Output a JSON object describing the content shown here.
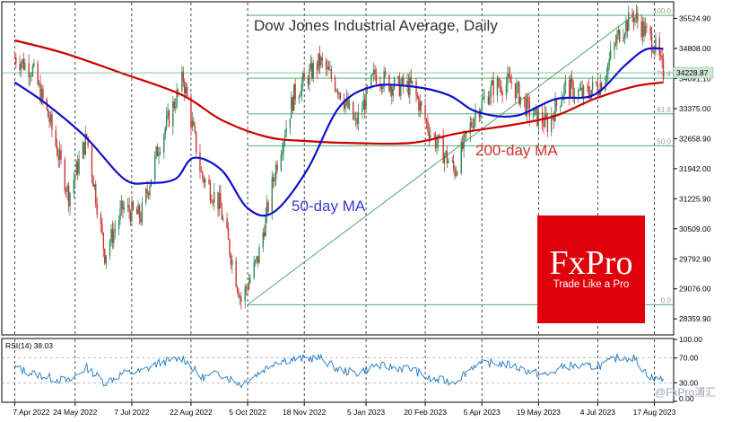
{
  "chart_data": {
    "type": "candlestick",
    "title": "Dow Jones Industrial Average, Daily",
    "price_axis": {
      "ylim": [
        28000,
        35900
      ],
      "ticks": [
        "35524.90",
        "34808.00",
        "34091.10",
        "33375.00",
        "32658.90",
        "31942.00",
        "31225.90",
        "30509.00",
        "29792.90",
        "29076.00",
        "28359.90"
      ],
      "tick_values": [
        35524.9,
        34808.0,
        34091.1,
        33375.0,
        32658.9,
        31942.0,
        31225.9,
        30509.0,
        29792.9,
        29076.0,
        28359.9
      ],
      "current_price_label": "34228.87",
      "current_price": 34228.87
    },
    "date_axis": {
      "labels": [
        "7 Apr 2022",
        "24 May 2022",
        "7 Jul 2022",
        "22 Aug 2022",
        "5 Oct 2022",
        "18 Nov 2022",
        "5 Jan 2023",
        "20 Feb 2023",
        "5 Apr 2023",
        "19 May 2023",
        "4 Jul 2023",
        "17 Aug 2023"
      ]
    },
    "price_series": [
      {
        "date": "2022-04-07",
        "close": 34600
      },
      {
        "date": "2022-04-21",
        "close": 34300
      },
      {
        "date": "2022-05-05",
        "close": 33000
      },
      {
        "date": "2022-05-19",
        "close": 31300
      },
      {
        "date": "2022-06-02",
        "close": 32700
      },
      {
        "date": "2022-06-16",
        "close": 29900
      },
      {
        "date": "2022-06-30",
        "close": 31000
      },
      {
        "date": "2022-07-14",
        "close": 30800
      },
      {
        "date": "2022-07-28",
        "close": 32500
      },
      {
        "date": "2022-08-16",
        "close": 34100
      },
      {
        "date": "2022-08-30",
        "close": 31800
      },
      {
        "date": "2022-09-13",
        "close": 31100
      },
      {
        "date": "2022-09-30",
        "close": 28800
      },
      {
        "date": "2022-10-13",
        "close": 29800
      },
      {
        "date": "2022-10-27",
        "close": 32000
      },
      {
        "date": "2022-11-10",
        "close": 33700
      },
      {
        "date": "2022-11-30",
        "close": 34500
      },
      {
        "date": "2022-12-14",
        "close": 33900
      },
      {
        "date": "2022-12-28",
        "close": 33000
      },
      {
        "date": "2023-01-12",
        "close": 34200
      },
      {
        "date": "2023-01-27",
        "close": 33900
      },
      {
        "date": "2023-02-10",
        "close": 33900
      },
      {
        "date": "2023-02-24",
        "close": 32800
      },
      {
        "date": "2023-03-15",
        "close": 31900
      },
      {
        "date": "2023-03-31",
        "close": 33300
      },
      {
        "date": "2023-04-14",
        "close": 33900
      },
      {
        "date": "2023-04-28",
        "close": 34000
      },
      {
        "date": "2023-05-12",
        "close": 33300
      },
      {
        "date": "2023-05-26",
        "close": 33000
      },
      {
        "date": "2023-06-09",
        "close": 33900
      },
      {
        "date": "2023-06-23",
        "close": 33700
      },
      {
        "date": "2023-07-07",
        "close": 34000
      },
      {
        "date": "2023-07-21",
        "close": 35200
      },
      {
        "date": "2023-08-01",
        "close": 35600
      },
      {
        "date": "2023-08-10",
        "close": 35200
      },
      {
        "date": "2023-08-17",
        "close": 34900
      },
      {
        "date": "2023-08-24",
        "close": 34228.87
      }
    ],
    "ma50": {
      "name": "50-day MA",
      "color": "#1010cc",
      "points": [
        {
          "date": "2022-04-07",
          "value": 34000
        },
        {
          "date": "2022-05-01",
          "value": 33500
        },
        {
          "date": "2022-06-01",
          "value": 32700
        },
        {
          "date": "2022-07-01",
          "value": 31700
        },
        {
          "date": "2022-07-20",
          "value": 31600
        },
        {
          "date": "2022-08-10",
          "value": 31700
        },
        {
          "date": "2022-08-24",
          "value": 32200
        },
        {
          "date": "2022-09-15",
          "value": 31900
        },
        {
          "date": "2022-10-05",
          "value": 31000
        },
        {
          "date": "2022-10-25",
          "value": 30900
        },
        {
          "date": "2022-11-20",
          "value": 31900
        },
        {
          "date": "2022-12-15",
          "value": 33400
        },
        {
          "date": "2023-01-10",
          "value": 33900
        },
        {
          "date": "2023-02-10",
          "value": 33900
        },
        {
          "date": "2023-03-10",
          "value": 33700
        },
        {
          "date": "2023-04-01",
          "value": 33300
        },
        {
          "date": "2023-05-01",
          "value": 33200
        },
        {
          "date": "2023-06-01",
          "value": 33600
        },
        {
          "date": "2023-07-01",
          "value": 33700
        },
        {
          "date": "2023-07-25",
          "value": 34400
        },
        {
          "date": "2023-08-10",
          "value": 34780
        },
        {
          "date": "2023-08-24",
          "value": 34800
        }
      ]
    },
    "ma200": {
      "name": "200-day MA",
      "color": "#cc0000",
      "points": [
        {
          "date": "2022-04-07",
          "value": 35000
        },
        {
          "date": "2022-05-15",
          "value": 34700
        },
        {
          "date": "2022-07-01",
          "value": 34200
        },
        {
          "date": "2022-08-15",
          "value": 33700
        },
        {
          "date": "2022-09-15",
          "value": 33100
        },
        {
          "date": "2022-10-20",
          "value": 32700
        },
        {
          "date": "2022-11-20",
          "value": 32600
        },
        {
          "date": "2023-01-01",
          "value": 32550
        },
        {
          "date": "2023-02-10",
          "value": 32560
        },
        {
          "date": "2023-03-20",
          "value": 32800
        },
        {
          "date": "2023-05-01",
          "value": 33000
        },
        {
          "date": "2023-06-01",
          "value": 33200
        },
        {
          "date": "2023-07-01",
          "value": 33600
        },
        {
          "date": "2023-08-01",
          "value": 33900
        },
        {
          "date": "2023-08-24",
          "value": 34000
        }
      ]
    },
    "fibonacci": {
      "levels": [
        {
          "label": "100.0",
          "value": 35600
        },
        {
          "label": "76.4",
          "value": 34100
        },
        {
          "label": "61.8",
          "value": 33250
        },
        {
          "label": "50.0",
          "value": 32490
        },
        {
          "label": "0.0",
          "value": 28700
        }
      ],
      "start_date": "2022-10-05",
      "end_date": "2023-08-24",
      "trendline": {
        "from": {
          "date": "2022-10-05",
          "value": 28700
        },
        "to": {
          "date": "2023-08-01",
          "value": 35600
        }
      }
    },
    "rsi": {
      "label": "RSI(14) 38.03",
      "ylim": [
        0,
        100
      ],
      "ticks": [
        "100.00",
        "70.00",
        "30.00",
        "0.00"
      ],
      "tick_values": [
        100,
        70,
        30,
        0
      ],
      "values": [
        {
          "date": "2022-04-07",
          "value": 55
        },
        {
          "date": "2022-04-21",
          "value": 45
        },
        {
          "date": "2022-05-05",
          "value": 38
        },
        {
          "date": "2022-05-19",
          "value": 32
        },
        {
          "date": "2022-06-02",
          "value": 55
        },
        {
          "date": "2022-06-16",
          "value": 30
        },
        {
          "date": "2022-06-30",
          "value": 45
        },
        {
          "date": "2022-07-14",
          "value": 48
        },
        {
          "date": "2022-07-28",
          "value": 62
        },
        {
          "date": "2022-08-16",
          "value": 70
        },
        {
          "date": "2022-08-30",
          "value": 38
        },
        {
          "date": "2022-09-13",
          "value": 45
        },
        {
          "date": "2022-09-30",
          "value": 28
        },
        {
          "date": "2022-10-13",
          "value": 45
        },
        {
          "date": "2022-10-27",
          "value": 65
        },
        {
          "date": "2022-11-10",
          "value": 68
        },
        {
          "date": "2022-11-30",
          "value": 70
        },
        {
          "date": "2022-12-14",
          "value": 52
        },
        {
          "date": "2022-12-28",
          "value": 45
        },
        {
          "date": "2023-01-12",
          "value": 58
        },
        {
          "date": "2023-01-27",
          "value": 55
        },
        {
          "date": "2023-02-10",
          "value": 52
        },
        {
          "date": "2023-02-24",
          "value": 35
        },
        {
          "date": "2023-03-15",
          "value": 32
        },
        {
          "date": "2023-03-31",
          "value": 60
        },
        {
          "date": "2023-04-14",
          "value": 62
        },
        {
          "date": "2023-04-28",
          "value": 58
        },
        {
          "date": "2023-05-12",
          "value": 48
        },
        {
          "date": "2023-05-26",
          "value": 42
        },
        {
          "date": "2023-06-09",
          "value": 58
        },
        {
          "date": "2023-06-23",
          "value": 55
        },
        {
          "date": "2023-07-07",
          "value": 58
        },
        {
          "date": "2023-07-21",
          "value": 72
        },
        {
          "date": "2023-08-01",
          "value": 70
        },
        {
          "date": "2023-08-10",
          "value": 48
        },
        {
          "date": "2023-08-17",
          "value": 35
        },
        {
          "date": "2023-08-24",
          "value": 38
        }
      ]
    },
    "annotations": [
      {
        "text": "50-day MA",
        "color": "#3a3ad0"
      },
      {
        "text": "200-day MA",
        "color": "#d03030"
      }
    ]
  },
  "logo": {
    "main": "FxPro",
    "sub": "Trade Like a Pro",
    "background": "#e0000c"
  },
  "watermark": "@FxPro浦汇",
  "colors": {
    "grid": "#000000",
    "fib": "#3aa060",
    "rsi_line": "#1e78c8",
    "bull": "#2e8b57",
    "bear": "#cc3333",
    "price_marker_bg": "#cfe9d6"
  }
}
